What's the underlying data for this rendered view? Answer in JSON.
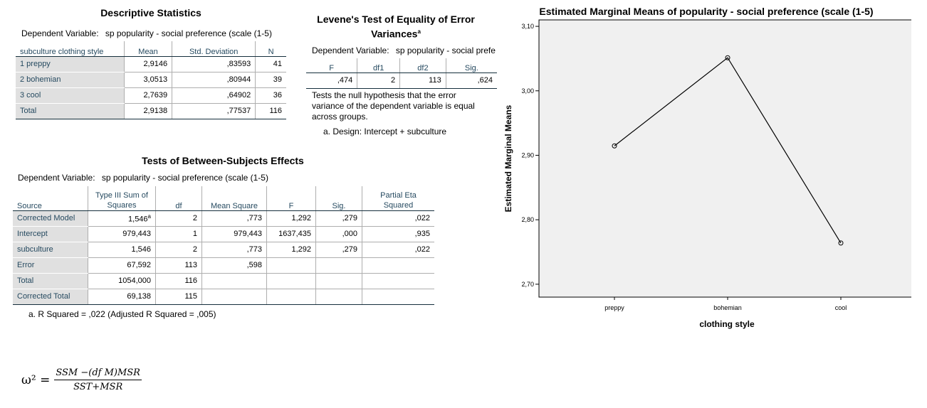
{
  "descriptive": {
    "title": "Descriptive Statistics",
    "dv_label": "Dependent Variable:",
    "dv_value": "sp popularity - social preference (scale (1-5)",
    "columns": [
      "subculture clothing style",
      "Mean",
      "Std. Deviation",
      "N"
    ],
    "rows": [
      [
        "1 preppy",
        "2,9146",
        ",83593",
        "41"
      ],
      [
        "2 bohemian",
        "3,0513",
        ",80944",
        "39"
      ],
      [
        "3 cool",
        "2,7639",
        ",64902",
        "36"
      ],
      [
        "Total",
        "2,9138",
        ",77537",
        "116"
      ]
    ]
  },
  "levene": {
    "title": "Levene's Test of Equality of Error Variances",
    "title_sup": "a",
    "dv_label": "Dependent Variable:",
    "dv_value": "sp popularity - social prefe",
    "columns": [
      "F",
      "df1",
      "df2",
      "Sig."
    ],
    "row": [
      ",474",
      "2",
      "113",
      ",624"
    ],
    "note": "Tests the null hypothesis that the error variance of the dependent variable is equal across groups.",
    "footnote": "a. Design: Intercept + subculture"
  },
  "between": {
    "title": "Tests of Between-Subjects Effects",
    "dv_label": "Dependent Variable:",
    "dv_value": "sp popularity - social preference (scale (1-5)",
    "columns": [
      "Source",
      "Type III Sum of Squares",
      "df",
      "Mean Square",
      "F",
      "Sig.",
      "Partial Eta Squared"
    ],
    "rows": [
      [
        "Corrected Model",
        "1,546",
        "2",
        ",773",
        "1,292",
        ",279",
        ",022"
      ],
      [
        "Intercept",
        "979,443",
        "1",
        "979,443",
        "1637,435",
        ",000",
        ",935"
      ],
      [
        "subculture",
        "1,546",
        "2",
        ",773",
        "1,292",
        ",279",
        ",022"
      ],
      [
        "Error",
        "67,592",
        "113",
        ",598",
        "",
        "",
        ""
      ],
      [
        "Total",
        "1054,000",
        "116",
        "",
        "",
        "",
        ""
      ],
      [
        "Corrected Total",
        "69,138",
        "115",
        "",
        "",
        "",
        ""
      ]
    ],
    "sup": "a",
    "footnote": "a. R Squared = ,022 (Adjusted R Squared = ,005)"
  },
  "formula": {
    "lhs": "ω² =",
    "numerator": "SSM −(df M)MSR",
    "denominator": "SST+MSR"
  },
  "chart_data": {
    "type": "line",
    "title": "Estimated Marginal Means of popularity - social preference (scale (1-5)",
    "xlabel": "clothing style",
    "ylabel": "Estimated Marginal Means",
    "categories": [
      "preppy",
      "bohemian",
      "cool"
    ],
    "values": [
      2.9146,
      3.0513,
      2.7639
    ],
    "ylim": [
      2.68,
      3.11
    ],
    "yticks": [
      "2,70",
      "2,80",
      "2,90",
      "3,00",
      "3,10"
    ],
    "ytick_values": [
      2.7,
      2.8,
      2.9,
      3.0,
      3.1
    ],
    "grid": false,
    "plot_background": "#f0f0f0",
    "line_color": "#000000"
  }
}
